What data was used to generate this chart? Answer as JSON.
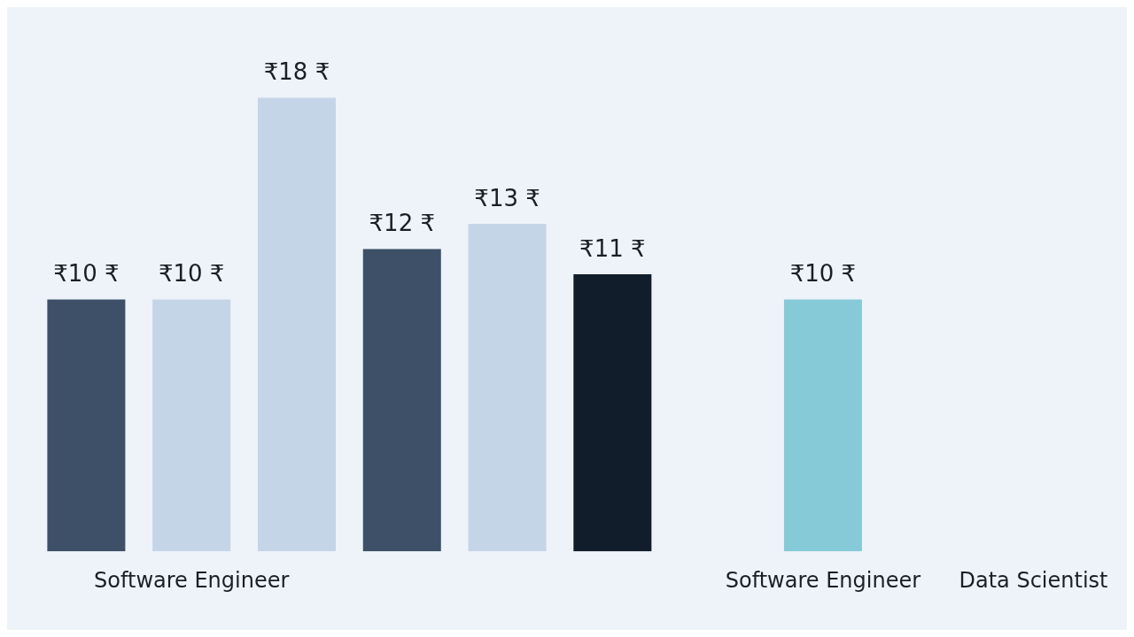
{
  "chart_data": {
    "type": "bar",
    "categories": [
      null,
      "Software Engineer",
      null,
      null,
      null,
      null,
      null,
      "Software Engineer",
      null,
      "Data Scientist"
    ],
    "values": [
      10,
      10,
      18,
      12,
      13,
      11,
      null,
      10,
      null,
      null
    ],
    "colors": [
      "#3d5068",
      "#c5d5e8",
      "#c5d5e8",
      "#3d5068",
      "#c5d5e8",
      "#111d2b",
      "#c5d5e8",
      "#86cad8",
      "#3f5068",
      "#15bcc3"
    ],
    "value_labels": [
      "₹10 ₹",
      "₹10 ₹",
      "₹18 ₹",
      "₹12 ₹",
      "₹13 ₹",
      "₹11 ₹",
      null,
      "₹10 ₹",
      null,
      null
    ],
    "grid": false,
    "legend": false
  }
}
